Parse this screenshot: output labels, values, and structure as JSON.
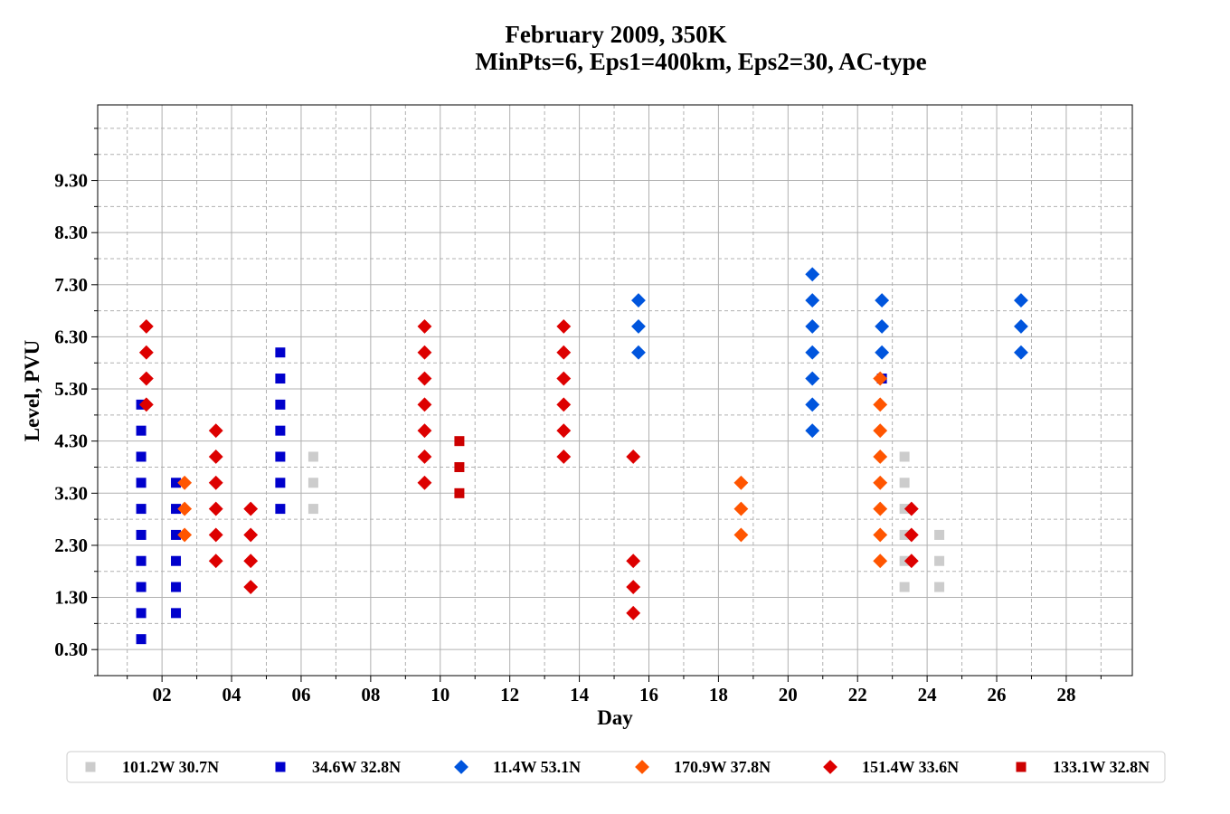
{
  "chart_data": {
    "type": "scatter",
    "title": "February 2009, 350K",
    "subtitle": "MinPts=6, Eps1=400km, Eps2=30, AC-type",
    "xlabel": "Day",
    "ylabel": "Level, PVU",
    "xlim": [
      0.15,
      29.9
    ],
    "ylim": [
      -0.2,
      10.75
    ],
    "x_ticks_major": [
      2,
      4,
      6,
      8,
      10,
      12,
      14,
      16,
      18,
      20,
      22,
      24,
      26,
      28
    ],
    "x_tick_labels": [
      "02",
      "04",
      "06",
      "08",
      "10",
      "12",
      "14",
      "16",
      "18",
      "20",
      "22",
      "24",
      "26",
      "28"
    ],
    "x_ticks_minor": [
      1,
      3,
      5,
      7,
      9,
      11,
      13,
      15,
      17,
      19,
      21,
      23,
      25,
      27,
      29
    ],
    "y_ticks_major": [
      0.3,
      1.3,
      2.3,
      3.3,
      4.3,
      5.3,
      6.3,
      7.3,
      8.3,
      9.3
    ],
    "y_tick_labels": [
      "0.30",
      "1.30",
      "2.30",
      "3.30",
      "4.30",
      "5.30",
      "6.30",
      "7.30",
      "8.30",
      "9.30"
    ],
    "y_ticks_minor": [
      -0.2,
      0.8,
      1.8,
      2.8,
      3.8,
      4.8,
      5.8,
      6.8,
      7.8,
      8.8,
      9.8,
      10.3
    ],
    "grid": true,
    "legend_position": "bottom",
    "series": [
      {
        "name": "101.2W 30.7N",
        "color": "#cccccc",
        "marker": "square",
        "points": [
          [
            6.35,
            3.0
          ],
          [
            6.35,
            3.5
          ],
          [
            6.35,
            4.0
          ],
          [
            23.35,
            1.5
          ],
          [
            23.35,
            2.0
          ],
          [
            23.35,
            2.5
          ],
          [
            23.35,
            3.0
          ],
          [
            23.35,
            3.5
          ],
          [
            23.35,
            4.0
          ],
          [
            24.35,
            1.5
          ],
          [
            24.35,
            2.0
          ],
          [
            24.35,
            2.5
          ]
        ]
      },
      {
        "name": "34.6W 32.8N",
        "color": "#0000cc",
        "marker": "square",
        "points": [
          [
            1.4,
            0.5
          ],
          [
            1.4,
            1.0
          ],
          [
            1.4,
            1.5
          ],
          [
            1.4,
            2.0
          ],
          [
            1.4,
            2.5
          ],
          [
            1.4,
            3.0
          ],
          [
            1.4,
            3.5
          ],
          [
            1.4,
            4.0
          ],
          [
            1.4,
            4.5
          ],
          [
            1.4,
            5.0
          ],
          [
            2.4,
            1.0
          ],
          [
            2.4,
            1.5
          ],
          [
            2.4,
            2.0
          ],
          [
            2.4,
            2.5
          ],
          [
            2.4,
            3.0
          ],
          [
            2.4,
            3.5
          ],
          [
            5.4,
            3.0
          ],
          [
            5.4,
            3.5
          ],
          [
            5.4,
            4.0
          ],
          [
            5.4,
            4.5
          ],
          [
            5.4,
            5.0
          ],
          [
            5.4,
            5.5
          ],
          [
            5.4,
            6.0
          ],
          [
            22.7,
            5.5
          ]
        ]
      },
      {
        "name": "11.4W 53.1N",
        "color": "#0055dd",
        "marker": "diamond",
        "points": [
          [
            15.7,
            6.0
          ],
          [
            15.7,
            6.5
          ],
          [
            15.7,
            7.0
          ],
          [
            20.7,
            4.5
          ],
          [
            20.7,
            5.0
          ],
          [
            20.7,
            5.5
          ],
          [
            20.7,
            6.0
          ],
          [
            20.7,
            6.5
          ],
          [
            20.7,
            7.0
          ],
          [
            20.7,
            7.5
          ],
          [
            22.7,
            6.0
          ],
          [
            22.7,
            6.5
          ],
          [
            22.7,
            7.0
          ],
          [
            26.7,
            6.0
          ],
          [
            26.7,
            6.5
          ],
          [
            26.7,
            7.0
          ]
        ]
      },
      {
        "name": "170.9W 37.8N",
        "color": "#ff5500",
        "marker": "diamond",
        "points": [
          [
            2.65,
            2.5
          ],
          [
            2.65,
            3.0
          ],
          [
            2.65,
            3.5
          ],
          [
            18.65,
            2.5
          ],
          [
            18.65,
            3.0
          ],
          [
            18.65,
            3.5
          ],
          [
            22.65,
            2.0
          ],
          [
            22.65,
            2.5
          ],
          [
            22.65,
            3.0
          ],
          [
            22.65,
            3.5
          ],
          [
            22.65,
            4.0
          ],
          [
            22.65,
            4.5
          ],
          [
            22.65,
            5.0
          ],
          [
            22.65,
            5.5
          ]
        ]
      },
      {
        "name": "151.4W 33.6N",
        "color": "#dd0000",
        "marker": "diamond",
        "points": [
          [
            1.55,
            5.0
          ],
          [
            1.55,
            5.5
          ],
          [
            1.55,
            6.0
          ],
          [
            1.55,
            6.5
          ],
          [
            3.55,
            2.0
          ],
          [
            3.55,
            2.5
          ],
          [
            3.55,
            3.0
          ],
          [
            3.55,
            3.5
          ],
          [
            3.55,
            4.0
          ],
          [
            3.55,
            4.5
          ],
          [
            4.55,
            1.5
          ],
          [
            4.55,
            2.0
          ],
          [
            4.55,
            2.5
          ],
          [
            4.55,
            3.0
          ],
          [
            9.55,
            3.5
          ],
          [
            9.55,
            4.0
          ],
          [
            9.55,
            4.5
          ],
          [
            9.55,
            5.0
          ],
          [
            9.55,
            5.5
          ],
          [
            9.55,
            6.0
          ],
          [
            9.55,
            6.5
          ],
          [
            13.55,
            4.0
          ],
          [
            13.55,
            4.5
          ],
          [
            13.55,
            5.0
          ],
          [
            13.55,
            5.5
          ],
          [
            13.55,
            6.0
          ],
          [
            13.55,
            6.5
          ],
          [
            15.55,
            1.0
          ],
          [
            15.55,
            1.5
          ],
          [
            15.55,
            2.0
          ],
          [
            15.55,
            4.0
          ],
          [
            23.55,
            2.0
          ],
          [
            23.55,
            2.5
          ],
          [
            23.55,
            3.0
          ]
        ]
      },
      {
        "name": "133.1W 32.8N",
        "color": "#cc0000",
        "marker": "square",
        "points": [
          [
            10.55,
            3.3
          ],
          [
            10.55,
            3.8
          ],
          [
            10.55,
            4.3
          ]
        ]
      }
    ]
  }
}
